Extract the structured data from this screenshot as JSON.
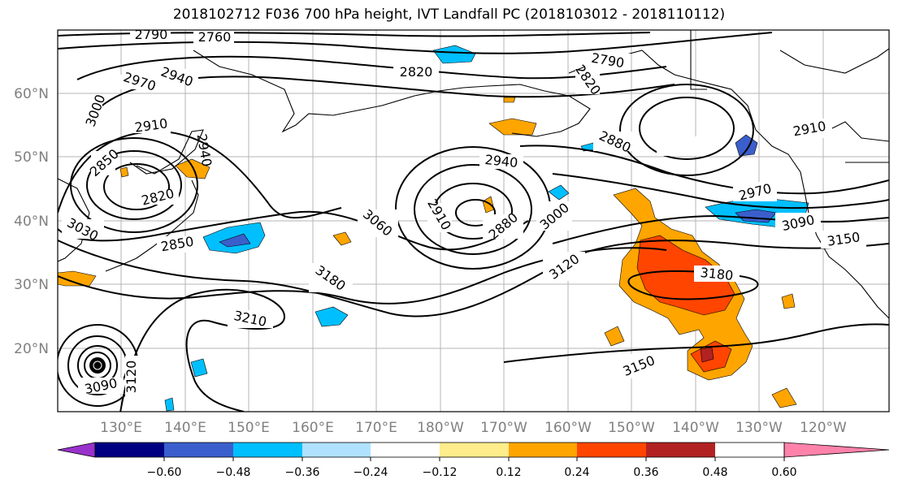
{
  "title": "2018102712 F036 700 hPa height, IVT Landfall PC (2018103012 - 2018110112)",
  "lat_labels": [
    "60°N",
    "50°N",
    "40°N",
    "30°N",
    "20°N"
  ],
  "lon_labels": [
    "130°E",
    "140°E",
    "150°E",
    "160°E",
    "170°E",
    "180°W",
    "170°W",
    "160°W",
    "150°W",
    "140°W",
    "130°W",
    "120°W"
  ],
  "contour_labels": [
    "2790",
    "2760",
    "2970",
    "2940",
    "3000",
    "2910",
    "2850",
    "2820",
    "2940",
    "3030",
    "2850",
    "2820",
    "2790",
    "2820",
    "2880",
    "2940",
    "2910",
    "2880",
    "3060",
    "3000",
    "3120",
    "3180",
    "3180",
    "3210",
    "3150",
    "3090",
    "3150",
    "2970",
    "2910",
    "3090",
    "3120"
  ],
  "colorbar": {
    "tick_labels": [
      "−0.60",
      "−0.48",
      "−0.36",
      "−0.24",
      "−0.12",
      "0.12",
      "0.24",
      "0.36",
      "0.48",
      "0.60"
    ],
    "colors": [
      "#9932cc",
      "#000080",
      "#3a5fcd",
      "#00bfff",
      "#b0e2ff",
      "#ffffff",
      "#ffec8b",
      "#ffa500",
      "#ff4500",
      "#b22222",
      "#ff82ab"
    ]
  }
}
